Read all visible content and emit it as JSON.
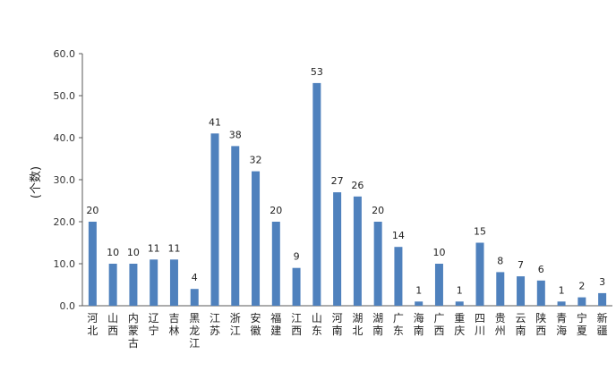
{
  "chart_data": {
    "type": "bar",
    "title": "",
    "xlabel": "",
    "ylabel": "(个数)",
    "ylim": [
      0,
      60
    ],
    "yticks": [
      "0.0",
      "10.0",
      "20.0",
      "30.0",
      "40.0",
      "50.0",
      "60.0"
    ],
    "grid": false,
    "bar_color": "#4f81bd",
    "categories": [
      "河北",
      "山西",
      "内蒙古",
      "辽宁",
      "吉林",
      "黑龙江",
      "江苏",
      "浙江",
      "安徽",
      "福建",
      "江西",
      "山东",
      "河南",
      "湖北",
      "湖南",
      "广东",
      "海南",
      "广西",
      "重庆",
      "四川",
      "贵州",
      "云南",
      "陕西",
      "青海",
      "宁夏",
      "新疆"
    ],
    "values": [
      20,
      10,
      10,
      11,
      11,
      4,
      41,
      38,
      32,
      20,
      9,
      53,
      27,
      26,
      20,
      14,
      1,
      10,
      1,
      15,
      8,
      7,
      6,
      1,
      2,
      3
    ],
    "data_labels": [
      "20",
      "10",
      "10",
      "11",
      "11",
      "4",
      "41",
      "38",
      "32",
      "20",
      "9",
      "53",
      "27",
      "26",
      "20",
      "14",
      "1",
      "10",
      "1",
      "15",
      "8",
      "7",
      "6",
      "1",
      "2",
      "3"
    ]
  }
}
